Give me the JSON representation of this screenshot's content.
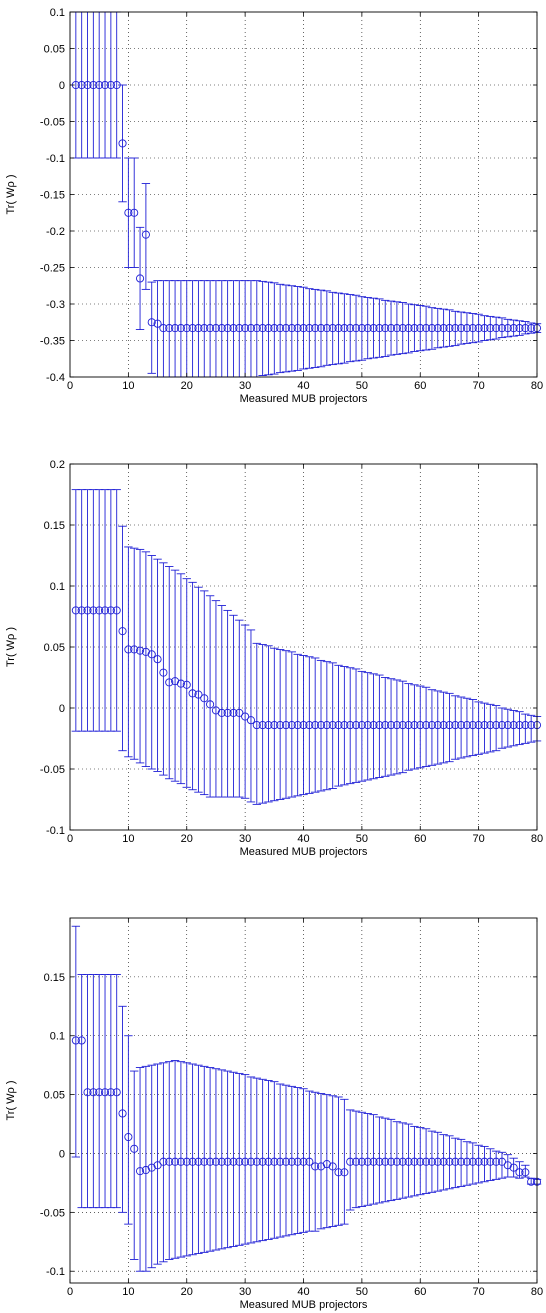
{
  "chart_data": [
    {
      "type": "scatter",
      "xlabel": "Measured MUB projectors",
      "ylabel": "Tr( Wρ )",
      "xlim": [
        0,
        80
      ],
      "ylim": [
        -0.4,
        0.1
      ],
      "xticks": [
        0,
        10,
        20,
        30,
        40,
        50,
        60,
        70,
        80
      ],
      "xtick_labels": [
        "0",
        "10",
        "20",
        "30",
        "40",
        "50",
        "60",
        "70",
        "80"
      ],
      "yticks": [
        -0.4,
        -0.35,
        -0.3,
        -0.25,
        -0.2,
        -0.15,
        -0.1,
        -0.05,
        0,
        0.05,
        0.1
      ],
      "ytick_labels": [
        "-0.4",
        "-0.35",
        "-0.3",
        "-0.25",
        "-0.2",
        "-0.15",
        "-0.1",
        "-0.05",
        "0",
        "0.05",
        "0.1"
      ],
      "grid": true,
      "marker": "circle",
      "color": "#1f1fd6",
      "x": [
        1,
        2,
        3,
        4,
        5,
        6,
        7,
        8,
        9,
        10,
        11,
        12,
        13,
        14,
        15,
        16,
        17,
        18,
        19,
        20,
        21,
        22,
        23,
        24,
        25,
        26,
        27,
        28,
        29,
        30,
        31,
        32,
        33,
        34,
        35,
        36,
        37,
        38,
        39,
        40,
        41,
        42,
        43,
        44,
        45,
        46,
        47,
        48,
        49,
        50,
        51,
        52,
        53,
        54,
        55,
        56,
        57,
        58,
        59,
        60,
        61,
        62,
        63,
        64,
        65,
        66,
        67,
        68,
        69,
        70,
        71,
        72,
        73,
        74,
        75,
        76,
        77,
        78,
        79,
        80
      ],
      "y": [
        0,
        0,
        0,
        0,
        0,
        0,
        0,
        0,
        -0.08,
        -0.175,
        -0.175,
        -0.265,
        -0.205,
        -0.325,
        -0.327,
        -0.333,
        -0.333,
        -0.333,
        -0.333,
        -0.333,
        -0.333,
        -0.333,
        -0.333,
        -0.333,
        -0.333,
        -0.333,
        -0.333,
        -0.333,
        -0.333,
        -0.333,
        -0.333,
        -0.333,
        -0.333,
        -0.333,
        -0.333,
        -0.333,
        -0.333,
        -0.333,
        -0.333,
        -0.333,
        -0.333,
        -0.333,
        -0.333,
        -0.333,
        -0.333,
        -0.333,
        -0.333,
        -0.333,
        -0.333,
        -0.333,
        -0.333,
        -0.333,
        -0.333,
        -0.333,
        -0.333,
        -0.333,
        -0.333,
        -0.333,
        -0.333,
        -0.333,
        -0.333,
        -0.333,
        -0.333,
        -0.333,
        -0.333,
        -0.333,
        -0.333,
        -0.333,
        -0.333,
        -0.333,
        -0.333,
        -0.333,
        -0.333,
        -0.333,
        -0.333,
        -0.333,
        -0.333,
        -0.333,
        -0.333,
        -0.333
      ],
      "err_low": [
        -0.1,
        -0.1,
        -0.1,
        -0.1,
        -0.1,
        -0.1,
        -0.1,
        -0.1,
        -0.16,
        -0.25,
        -0.25,
        -0.335,
        -0.28,
        -0.395,
        -0.4,
        -0.4,
        -0.4,
        -0.4,
        -0.4,
        -0.4,
        -0.4,
        -0.4,
        -0.4,
        -0.4,
        -0.4,
        -0.4,
        -0.4,
        -0.4,
        -0.4,
        -0.4,
        -0.4,
        -0.4,
        -0.398,
        -0.397,
        -0.396,
        -0.394,
        -0.393,
        -0.392,
        -0.391,
        -0.389,
        -0.388,
        -0.387,
        -0.386,
        -0.384,
        -0.383,
        -0.382,
        -0.381,
        -0.379,
        -0.378,
        -0.377,
        -0.375,
        -0.374,
        -0.373,
        -0.372,
        -0.37,
        -0.369,
        -0.368,
        -0.367,
        -0.365,
        -0.364,
        -0.363,
        -0.362,
        -0.36,
        -0.359,
        -0.358,
        -0.357,
        -0.355,
        -0.354,
        -0.353,
        -0.352,
        -0.35,
        -0.349,
        -0.348,
        -0.346,
        -0.345,
        -0.344,
        -0.343,
        -0.341,
        -0.34,
        -0.339
      ],
      "err_high": [
        0.1,
        0.1,
        0.1,
        0.1,
        0.1,
        0.1,
        0.1,
        0.1,
        0,
        -0.1,
        -0.1,
        -0.195,
        -0.135,
        -0.27,
        -0.268,
        -0.268,
        -0.268,
        -0.268,
        -0.268,
        -0.268,
        -0.268,
        -0.268,
        -0.268,
        -0.268,
        -0.268,
        -0.268,
        -0.268,
        -0.268,
        -0.268,
        -0.268,
        -0.268,
        -0.268,
        -0.269,
        -0.27,
        -0.271,
        -0.273,
        -0.274,
        -0.275,
        -0.276,
        -0.277,
        -0.279,
        -0.28,
        -0.281,
        -0.282,
        -0.284,
        -0.285,
        -0.286,
        -0.287,
        -0.288,
        -0.29,
        -0.291,
        -0.292,
        -0.293,
        -0.295,
        -0.296,
        -0.297,
        -0.298,
        -0.3,
        -0.301,
        -0.302,
        -0.303,
        -0.305,
        -0.306,
        -0.307,
        -0.308,
        -0.31,
        -0.311,
        -0.312,
        -0.313,
        -0.314,
        -0.316,
        -0.317,
        -0.318,
        -0.319,
        -0.321,
        -0.322,
        -0.323,
        -0.324,
        -0.326,
        -0.327
      ]
    },
    {
      "type": "scatter",
      "xlabel": "Measured MUB projectors",
      "ylabel": "Tr( Wρ )",
      "xlim": [
        0,
        80
      ],
      "ylim": [
        -0.1,
        0.2
      ],
      "xticks": [
        0,
        10,
        20,
        30,
        40,
        50,
        60,
        70,
        80
      ],
      "xtick_labels": [
        "0",
        "10",
        "20",
        "30",
        "40",
        "50",
        "60",
        "70",
        "80"
      ],
      "yticks": [
        -0.1,
        -0.05,
        0,
        0.05,
        0.1,
        0.15,
        0.2
      ],
      "ytick_labels": [
        "-0.1",
        "-0.05",
        "0",
        "0.05",
        "0.1",
        "0.15",
        "0.2"
      ],
      "grid": true,
      "marker": "circle",
      "color": "#1f1fd6",
      "x": [
        1,
        2,
        3,
        4,
        5,
        6,
        7,
        8,
        9,
        10,
        11,
        12,
        13,
        14,
        15,
        16,
        17,
        18,
        19,
        20,
        21,
        22,
        23,
        24,
        25,
        26,
        27,
        28,
        29,
        30,
        31,
        32,
        33,
        34,
        35,
        36,
        37,
        38,
        39,
        40,
        41,
        42,
        43,
        44,
        45,
        46,
        47,
        48,
        49,
        50,
        51,
        52,
        53,
        54,
        55,
        56,
        57,
        58,
        59,
        60,
        61,
        62,
        63,
        64,
        65,
        66,
        67,
        68,
        69,
        70,
        71,
        72,
        73,
        74,
        75,
        76,
        77,
        78,
        79,
        80
      ],
      "y": [
        0.08,
        0.08,
        0.08,
        0.08,
        0.08,
        0.08,
        0.08,
        0.08,
        0.063,
        0.048,
        0.048,
        0.047,
        0.046,
        0.044,
        0.04,
        0.029,
        0.021,
        0.022,
        0.02,
        0.019,
        0.012,
        0.011,
        0.008,
        0.003,
        -0.002,
        -0.004,
        -0.004,
        -0.004,
        -0.004,
        -0.007,
        -0.01,
        -0.014,
        -0.014,
        -0.014,
        -0.014,
        -0.014,
        -0.014,
        -0.014,
        -0.014,
        -0.014,
        -0.014,
        -0.014,
        -0.014,
        -0.014,
        -0.014,
        -0.014,
        -0.014,
        -0.014,
        -0.014,
        -0.014,
        -0.014,
        -0.014,
        -0.014,
        -0.014,
        -0.014,
        -0.014,
        -0.014,
        -0.014,
        -0.014,
        -0.014,
        -0.014,
        -0.014,
        -0.014,
        -0.014,
        -0.014,
        -0.014,
        -0.014,
        -0.014,
        -0.014,
        -0.014,
        -0.014,
        -0.014,
        -0.014,
        -0.014,
        -0.014,
        -0.014,
        -0.014,
        -0.014,
        -0.014,
        -0.014
      ],
      "err_low": [
        -0.019,
        -0.019,
        -0.019,
        -0.019,
        -0.019,
        -0.019,
        -0.019,
        -0.019,
        -0.035,
        -0.04,
        -0.042,
        -0.045,
        -0.048,
        -0.05,
        -0.052,
        -0.055,
        -0.058,
        -0.06,
        -0.062,
        -0.065,
        -0.067,
        -0.069,
        -0.071,
        -0.073,
        -0.073,
        -0.073,
        -0.073,
        -0.073,
        -0.073,
        -0.074,
        -0.077,
        -0.079,
        -0.078,
        -0.077,
        -0.076,
        -0.075,
        -0.074,
        -0.073,
        -0.072,
        -0.071,
        -0.07,
        -0.069,
        -0.068,
        -0.067,
        -0.066,
        -0.064,
        -0.063,
        -0.062,
        -0.061,
        -0.06,
        -0.059,
        -0.058,
        -0.057,
        -0.056,
        -0.055,
        -0.054,
        -0.053,
        -0.051,
        -0.05,
        -0.049,
        -0.048,
        -0.047,
        -0.046,
        -0.045,
        -0.044,
        -0.042,
        -0.041,
        -0.04,
        -0.039,
        -0.038,
        -0.037,
        -0.036,
        -0.035,
        -0.033,
        -0.032,
        -0.031,
        -0.03,
        -0.029,
        -0.028,
        -0.027
      ],
      "err_high": [
        0.179,
        0.179,
        0.179,
        0.179,
        0.179,
        0.179,
        0.179,
        0.179,
        0.149,
        0.132,
        0.131,
        0.13,
        0.128,
        0.125,
        0.122,
        0.119,
        0.116,
        0.113,
        0.11,
        0.106,
        0.103,
        0.099,
        0.096,
        0.092,
        0.088,
        0.084,
        0.08,
        0.076,
        0.072,
        0.068,
        0.064,
        0.053,
        0.052,
        0.051,
        0.049,
        0.048,
        0.047,
        0.046,
        0.044,
        0.043,
        0.042,
        0.041,
        0.039,
        0.038,
        0.037,
        0.035,
        0.034,
        0.033,
        0.032,
        0.03,
        0.029,
        0.028,
        0.027,
        0.025,
        0.024,
        0.023,
        0.022,
        0.02,
        0.019,
        0.018,
        0.017,
        0.015,
        0.014,
        0.013,
        0.012,
        0.01,
        0.009,
        0.008,
        0.007,
        0.005,
        0.004,
        0.003,
        0.002,
        0,
        -0.001,
        -0.002,
        -0.003,
        -0.005,
        -0.006,
        -0.007
      ]
    },
    {
      "type": "scatter",
      "xlabel": "Measured MUB projectors",
      "ylabel": "Tr( Wρ )",
      "xlim": [
        0,
        80
      ],
      "ylim": [
        -0.11,
        0.2
      ],
      "xticks": [
        0,
        10,
        20,
        30,
        40,
        50,
        60,
        70,
        80
      ],
      "xtick_labels": [
        "0",
        "10",
        "20",
        "30",
        "40",
        "50",
        "60",
        "70",
        "80"
      ],
      "yticks": [
        -0.1,
        -0.05,
        0,
        0.05,
        0.1,
        0.15
      ],
      "ytick_labels": [
        "-0.1",
        "-0.05",
        "0",
        "0.05",
        "0.1",
        "0.15"
      ],
      "grid": true,
      "marker": "circle",
      "color": "#1f1fd6",
      "x": [
        1,
        2,
        3,
        4,
        5,
        6,
        7,
        8,
        9,
        10,
        11,
        12,
        13,
        14,
        15,
        16,
        17,
        18,
        19,
        20,
        21,
        22,
        23,
        24,
        25,
        26,
        27,
        28,
        29,
        30,
        31,
        32,
        33,
        34,
        35,
        36,
        37,
        38,
        39,
        40,
        41,
        42,
        43,
        44,
        45,
        46,
        47,
        48,
        49,
        50,
        51,
        52,
        53,
        54,
        55,
        56,
        57,
        58,
        59,
        60,
        61,
        62,
        63,
        64,
        65,
        66,
        67,
        68,
        69,
        70,
        71,
        72,
        73,
        74,
        75,
        76,
        77,
        78,
        79,
        80
      ],
      "y": [
        0.096,
        0.096,
        0.052,
        0.052,
        0.052,
        0.052,
        0.052,
        0.052,
        0.034,
        0.014,
        0.004,
        -0.015,
        -0.014,
        -0.012,
        -0.01,
        -0.007,
        -0.007,
        -0.007,
        -0.007,
        -0.007,
        -0.007,
        -0.007,
        -0.007,
        -0.007,
        -0.007,
        -0.007,
        -0.007,
        -0.007,
        -0.007,
        -0.007,
        -0.007,
        -0.007,
        -0.007,
        -0.007,
        -0.007,
        -0.007,
        -0.007,
        -0.007,
        -0.007,
        -0.007,
        -0.007,
        -0.011,
        -0.011,
        -0.009,
        -0.011,
        -0.016,
        -0.016,
        -0.007,
        -0.007,
        -0.007,
        -0.007,
        -0.007,
        -0.007,
        -0.007,
        -0.007,
        -0.007,
        -0.007,
        -0.007,
        -0.007,
        -0.007,
        -0.007,
        -0.007,
        -0.007,
        -0.007,
        -0.007,
        -0.007,
        -0.007,
        -0.007,
        -0.007,
        -0.007,
        -0.007,
        -0.007,
        -0.007,
        -0.007,
        -0.01,
        -0.012,
        -0.016,
        -0.016,
        -0.024,
        -0.024
      ],
      "err_low": [
        -0.003,
        -0.046,
        -0.046,
        -0.046,
        -0.046,
        -0.046,
        -0.046,
        -0.046,
        -0.05,
        -0.06,
        -0.09,
        -0.1,
        -0.1,
        -0.097,
        -0.094,
        -0.092,
        -0.09,
        -0.089,
        -0.088,
        -0.087,
        -0.086,
        -0.085,
        -0.084,
        -0.083,
        -0.082,
        -0.081,
        -0.08,
        -0.079,
        -0.078,
        -0.077,
        -0.076,
        -0.075,
        -0.074,
        -0.073,
        -0.072,
        -0.071,
        -0.07,
        -0.069,
        -0.068,
        -0.067,
        -0.066,
        -0.066,
        -0.064,
        -0.063,
        -0.062,
        -0.061,
        -0.06,
        -0.048,
        -0.046,
        -0.045,
        -0.044,
        -0.043,
        -0.042,
        -0.041,
        -0.04,
        -0.039,
        -0.038,
        -0.037,
        -0.036,
        -0.035,
        -0.034,
        -0.033,
        -0.032,
        -0.031,
        -0.03,
        -0.029,
        -0.028,
        -0.027,
        -0.026,
        -0.025,
        -0.024,
        -0.023,
        -0.022,
        -0.021,
        -0.02,
        -0.02,
        -0.021,
        -0.02,
        -0.026,
        -0.026
      ],
      "err_high": [
        0.193,
        0.152,
        0.152,
        0.152,
        0.152,
        0.152,
        0.152,
        0.152,
        0.125,
        0.1,
        0.07,
        0.073,
        0.074,
        0.075,
        0.076,
        0.077,
        0.078,
        0.079,
        0.078,
        0.077,
        0.076,
        0.075,
        0.074,
        0.073,
        0.072,
        0.071,
        0.07,
        0.069,
        0.068,
        0.067,
        0.065,
        0.064,
        0.063,
        0.062,
        0.061,
        0.059,
        0.058,
        0.057,
        0.056,
        0.055,
        0.053,
        0.052,
        0.051,
        0.05,
        0.049,
        0.048,
        0.046,
        0.037,
        0.036,
        0.035,
        0.034,
        0.033,
        0.031,
        0.03,
        0.029,
        0.027,
        0.026,
        0.025,
        0.023,
        0.022,
        0.021,
        0.019,
        0.018,
        0.016,
        0.015,
        0.013,
        0.012,
        0.01,
        0.009,
        0.007,
        0.006,
        0.004,
        0.002,
        0.001,
        -0.001,
        -0.004,
        -0.007,
        -0.01,
        -0.021,
        -0.022
      ]
    }
  ]
}
